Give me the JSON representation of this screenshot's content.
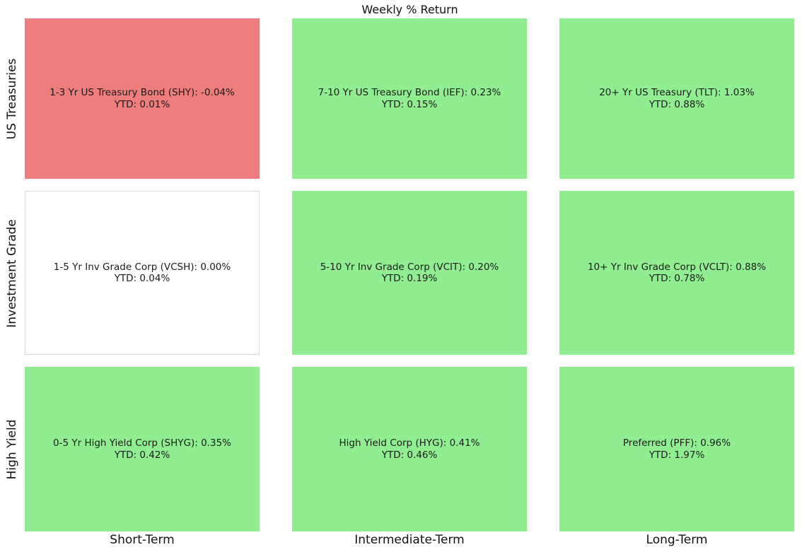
{
  "title": "Weekly % Return",
  "colors": {
    "negative_cell": "#ee7d7d",
    "positive_cell": "#90ee90",
    "neutral_cell": "#ffffff",
    "neutral_border": "#d9d9d9",
    "text": "#1a1a1a"
  },
  "chart_data": {
    "type": "heatmap",
    "title": "Weekly % Return",
    "rows": [
      "US Treasuries",
      "Investment Grade",
      "High Yield"
    ],
    "columns": [
      "Short-Term",
      "Intermediate-Term",
      "Long-Term"
    ],
    "legend": "none",
    "grid": "off",
    "cells": [
      {
        "row": "US Treasuries",
        "column": "Short-Term",
        "name": "1-3 Yr US Treasury Bond",
        "ticker": "SHY",
        "weekly_pct": -0.04,
        "ytd_pct": 0.01,
        "line1": "1-3 Yr US Treasury Bond (SHY): -0.04%",
        "line2": "YTD: 0.01%",
        "bg": "#ee7d7d",
        "border_color": "#ee7d7d"
      },
      {
        "row": "US Treasuries",
        "column": "Intermediate-Term",
        "name": "7-10 Yr US Treasury Bond",
        "ticker": "IEF",
        "weekly_pct": 0.23,
        "ytd_pct": 0.15,
        "line1": "7-10 Yr US Treasury Bond (IEF): 0.23%",
        "line2": "YTD: 0.15%",
        "bg": "#90ee90",
        "border_color": "#90ee90"
      },
      {
        "row": "US Treasuries",
        "column": "Long-Term",
        "name": "20+ Yr US Treasury",
        "ticker": "TLT",
        "weekly_pct": 1.03,
        "ytd_pct": 0.88,
        "line1": "20+ Yr US Treasury (TLT): 1.03%",
        "line2": "YTD: 0.88%",
        "bg": "#90ee90",
        "border_color": "#90ee90"
      },
      {
        "row": "Investment Grade",
        "column": "Short-Term",
        "name": "1-5 Yr Inv Grade Corp",
        "ticker": "VCSH",
        "weekly_pct": 0.0,
        "ytd_pct": 0.04,
        "line1": "1-5 Yr Inv Grade Corp (VCSH): 0.00%",
        "line2": "YTD: 0.04%",
        "bg": "#ffffff",
        "border_color": "#d9d9d9"
      },
      {
        "row": "Investment Grade",
        "column": "Intermediate-Term",
        "name": "5-10 Yr Inv Grade Corp",
        "ticker": "VCIT",
        "weekly_pct": 0.2,
        "ytd_pct": 0.19,
        "line1": "5-10 Yr Inv Grade Corp (VCIT): 0.20%",
        "line2": "YTD: 0.19%",
        "bg": "#90ee90",
        "border_color": "#90ee90"
      },
      {
        "row": "Investment Grade",
        "column": "Long-Term",
        "name": "10+ Yr Inv Grade Corp",
        "ticker": "VCLT",
        "weekly_pct": 0.88,
        "ytd_pct": 0.78,
        "line1": "10+ Yr Inv Grade Corp (VCLT): 0.88%",
        "line2": "YTD: 0.78%",
        "bg": "#90ee90",
        "border_color": "#90ee90"
      },
      {
        "row": "High Yield",
        "column": "Short-Term",
        "name": "0-5 Yr High Yield Corp",
        "ticker": "SHYG",
        "weekly_pct": 0.35,
        "ytd_pct": 0.42,
        "line1": "0-5 Yr High Yield Corp (SHYG): 0.35%",
        "line2": "YTD: 0.42%",
        "bg": "#90ee90",
        "border_color": "#90ee90"
      },
      {
        "row": "High Yield",
        "column": "Intermediate-Term",
        "name": "High Yield Corp",
        "ticker": "HYG",
        "weekly_pct": 0.41,
        "ytd_pct": 0.46,
        "line1": "High Yield Corp (HYG): 0.41%",
        "line2": "YTD: 0.46%",
        "bg": "#90ee90",
        "border_color": "#90ee90"
      },
      {
        "row": "High Yield",
        "column": "Long-Term",
        "name": "Preferred",
        "ticker": "PFF",
        "weekly_pct": 0.96,
        "ytd_pct": 1.97,
        "line1": "Preferred (PFF): 0.96%",
        "line2": "YTD: 1.97%",
        "bg": "#90ee90",
        "border_color": "#90ee90"
      }
    ]
  }
}
